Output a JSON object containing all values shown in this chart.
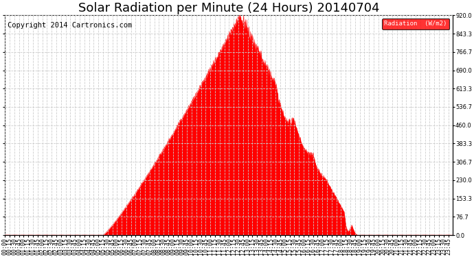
{
  "title": "Solar Radiation per Minute (24 Hours) 20140704",
  "copyright_text": "Copyright 2014 Cartronics.com",
  "legend_label": "Radiation  (W/m2)",
  "ylabel_right": [
    "0.0",
    "76.7",
    "153.3",
    "230.0",
    "306.7",
    "383.3",
    "460.0",
    "536.7",
    "613.3",
    "690.0",
    "766.7",
    "843.3",
    "920.0"
  ],
  "ymax": 920.0,
  "ymin": 0.0,
  "background_color": "#ffffff",
  "plot_bg_color": "#ffffff",
  "fill_color": "#ff0000",
  "line_color": "#ff0000",
  "dashed_zero_color": "#ff0000",
  "grid_color": "#cccccc",
  "title_fontsize": 13,
  "tick_fontsize": 6,
  "copyright_fontsize": 7.5,
  "x_tick_interval_minutes": 15,
  "total_minutes": 1440,
  "sunrise_minute": 315,
  "sunset_minute": 1135,
  "peak_minute": 755,
  "peak_val": 920.0
}
